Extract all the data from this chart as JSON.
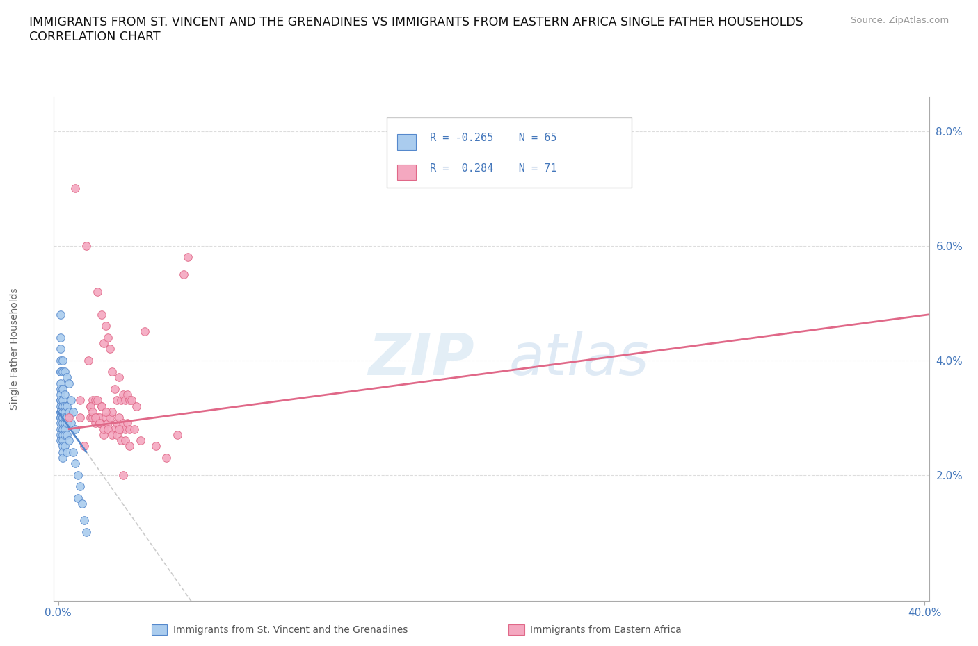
{
  "title_line1": "IMMIGRANTS FROM ST. VINCENT AND THE GRENADINES VS IMMIGRANTS FROM EASTERN AFRICA SINGLE FATHER HOUSEHOLDS",
  "title_line2": "CORRELATION CHART",
  "source": "Source: ZipAtlas.com",
  "ylabel": "Single Father Households",
  "color_blue": "#aaccee",
  "color_pink": "#f4a8c0",
  "color_blue_dark": "#5588cc",
  "color_pink_dark": "#e06888",
  "color_text_blue": "#4477bb",
  "blue_x": [
    0.001,
    0.001,
    0.001,
    0.001,
    0.001,
    0.001,
    0.001,
    0.001,
    0.001,
    0.001,
    0.001,
    0.001,
    0.001,
    0.001,
    0.001,
    0.001,
    0.001,
    0.001,
    0.001,
    0.001,
    0.002,
    0.002,
    0.002,
    0.002,
    0.002,
    0.002,
    0.002,
    0.002,
    0.002,
    0.002,
    0.002,
    0.002,
    0.002,
    0.002,
    0.002,
    0.003,
    0.003,
    0.003,
    0.003,
    0.003,
    0.003,
    0.003,
    0.003,
    0.003,
    0.004,
    0.004,
    0.004,
    0.004,
    0.004,
    0.004,
    0.005,
    0.005,
    0.005,
    0.006,
    0.006,
    0.007,
    0.007,
    0.008,
    0.008,
    0.009,
    0.009,
    0.01,
    0.011,
    0.012,
    0.013
  ],
  "blue_y": [
    0.048,
    0.044,
    0.042,
    0.04,
    0.038,
    0.038,
    0.036,
    0.035,
    0.034,
    0.033,
    0.033,
    0.032,
    0.031,
    0.031,
    0.03,
    0.03,
    0.029,
    0.028,
    0.027,
    0.026,
    0.04,
    0.038,
    0.035,
    0.033,
    0.032,
    0.031,
    0.03,
    0.03,
    0.029,
    0.028,
    0.027,
    0.026,
    0.025,
    0.024,
    0.023,
    0.038,
    0.034,
    0.032,
    0.031,
    0.03,
    0.029,
    0.028,
    0.027,
    0.025,
    0.037,
    0.032,
    0.03,
    0.029,
    0.027,
    0.024,
    0.036,
    0.031,
    0.026,
    0.033,
    0.029,
    0.031,
    0.024,
    0.028,
    0.022,
    0.02,
    0.016,
    0.018,
    0.015,
    0.012,
    0.01
  ],
  "pink_x": [
    0.005,
    0.008,
    0.01,
    0.01,
    0.012,
    0.013,
    0.014,
    0.015,
    0.015,
    0.016,
    0.016,
    0.017,
    0.017,
    0.018,
    0.018,
    0.019,
    0.019,
    0.02,
    0.02,
    0.021,
    0.021,
    0.022,
    0.022,
    0.023,
    0.023,
    0.024,
    0.024,
    0.025,
    0.025,
    0.026,
    0.026,
    0.027,
    0.027,
    0.028,
    0.028,
    0.029,
    0.029,
    0.03,
    0.03,
    0.031,
    0.031,
    0.032,
    0.032,
    0.033,
    0.033,
    0.034,
    0.035,
    0.036,
    0.038,
    0.04,
    0.018,
    0.02,
    0.022,
    0.015,
    0.016,
    0.017,
    0.019,
    0.021,
    0.023,
    0.025,
    0.027,
    0.029,
    0.031,
    0.033,
    0.06,
    0.058,
    0.028,
    0.045,
    0.05,
    0.055,
    0.03
  ],
  "pink_y": [
    0.03,
    0.07,
    0.033,
    0.03,
    0.025,
    0.06,
    0.04,
    0.032,
    0.03,
    0.03,
    0.033,
    0.029,
    0.033,
    0.052,
    0.03,
    0.029,
    0.03,
    0.032,
    0.048,
    0.043,
    0.027,
    0.046,
    0.03,
    0.044,
    0.029,
    0.042,
    0.03,
    0.038,
    0.031,
    0.035,
    0.028,
    0.033,
    0.029,
    0.037,
    0.03,
    0.033,
    0.028,
    0.034,
    0.029,
    0.033,
    0.028,
    0.034,
    0.029,
    0.033,
    0.028,
    0.033,
    0.028,
    0.032,
    0.026,
    0.045,
    0.033,
    0.032,
    0.031,
    0.032,
    0.031,
    0.03,
    0.029,
    0.028,
    0.028,
    0.027,
    0.027,
    0.026,
    0.026,
    0.025,
    0.058,
    0.055,
    0.028,
    0.025,
    0.023,
    0.027,
    0.02
  ],
  "xlim_min": -0.002,
  "xlim_max": 0.402,
  "ylim_min": -0.002,
  "ylim_max": 0.086
}
